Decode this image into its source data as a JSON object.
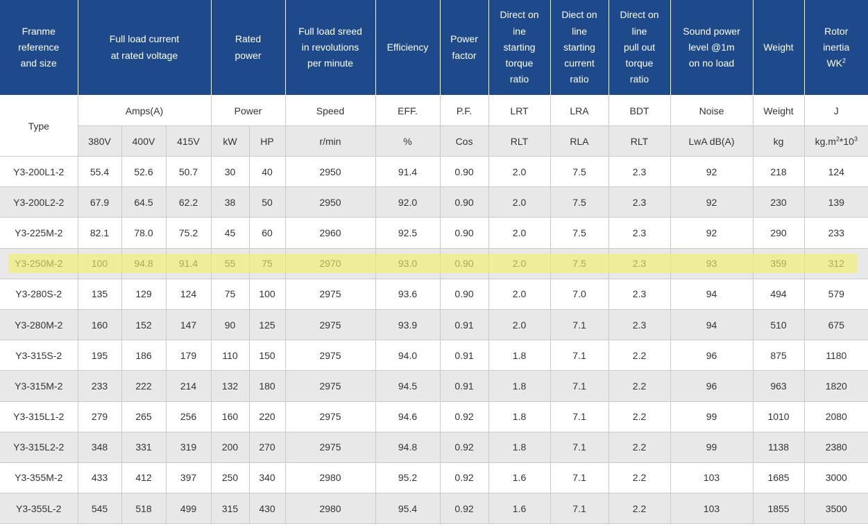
{
  "header": {
    "frame": [
      "Franme",
      "reference",
      "and size"
    ],
    "current": [
      "Full load current",
      "at rated voltage"
    ],
    "power": [
      "Rated",
      "power"
    ],
    "speed": [
      "Full load sreed",
      "in revolutions",
      "per minute"
    ],
    "efficiency": [
      "Efficiency"
    ],
    "pf": [
      "Power",
      "factor"
    ],
    "lrt": [
      "Direct on",
      "ine",
      "starting",
      "torque",
      "ratio"
    ],
    "lra": [
      "Diect on",
      "line",
      "starting",
      "current",
      "ratio"
    ],
    "bdt": [
      "Direct on",
      "line",
      "pull out",
      "torque",
      "ratio"
    ],
    "noise": [
      "Sound power",
      "level @1m",
      "on no load"
    ],
    "weight": [
      "Weight"
    ],
    "inertia": [
      "Rotor",
      "inertia",
      "WK",
      "2"
    ]
  },
  "units1": {
    "type": "Type",
    "amps": "Amps(A)",
    "power": "Power",
    "speed": "Speed",
    "eff": "EFF.",
    "pf": "P.F.",
    "lrt": "LRT",
    "lra": "LRA",
    "bdt": "BDT",
    "noise": "Noise",
    "weight": "Weight",
    "j": "J"
  },
  "units2": {
    "v380": "380V",
    "v400": "400V",
    "v415": "415V",
    "kw": "kW",
    "hp": "HP",
    "rpm": "r/min",
    "pct": "%",
    "cos": "Cos",
    "rlt1": "RLT",
    "rla": "RLA",
    "rlt2": "RLT",
    "lwa": "LwA dB(A)",
    "kg": "kg",
    "inertia_a": "kg.m",
    "inertia_b": "2",
    "inertia_c": "*10",
    "inertia_d": "3"
  },
  "highlight": {
    "row_index": 3,
    "color": "#f0f06a"
  },
  "rows": [
    [
      "Y3-200L1-2",
      "55.4",
      "52.6",
      "50.7",
      "30",
      "40",
      "2950",
      "91.4",
      "0.90",
      "2.0",
      "7.5",
      "2.3",
      "92",
      "218",
      "124"
    ],
    [
      "Y3-200L2-2",
      "67.9",
      "64.5",
      "62.2",
      "38",
      "50",
      "2950",
      "92.0",
      "0.90",
      "2.0",
      "7.5",
      "2.3",
      "92",
      "230",
      "139"
    ],
    [
      "Y3-225M-2",
      "82.1",
      "78.0",
      "75.2",
      "45",
      "60",
      "2960",
      "92.5",
      "0.90",
      "2.0",
      "7.5",
      "2.3",
      "92",
      "290",
      "233"
    ],
    [
      "Y3-250M-2",
      "100",
      "94.8",
      "91.4",
      "55",
      "75",
      "2970",
      "93.0",
      "0.90",
      "2.0",
      "7.5",
      "2.3",
      "93",
      "359",
      "312"
    ],
    [
      "Y3-280S-2",
      "135",
      "129",
      "124",
      "75",
      "100",
      "2975",
      "93.6",
      "0.90",
      "2.0",
      "7.0",
      "2.3",
      "94",
      "494",
      "579"
    ],
    [
      "Y3-280M-2",
      "160",
      "152",
      "147",
      "90",
      "125",
      "2975",
      "93.9",
      "0.91",
      "2.0",
      "7.1",
      "2.3",
      "94",
      "510",
      "675"
    ],
    [
      "Y3-315S-2",
      "195",
      "186",
      "179",
      "110",
      "150",
      "2975",
      "94.0",
      "0.91",
      "1.8",
      "7.1",
      "2.2",
      "96",
      "875",
      "1180"
    ],
    [
      "Y3-315M-2",
      "233",
      "222",
      "214",
      "132",
      "180",
      "2975",
      "94.5",
      "0.91",
      "1.8",
      "7.1",
      "2.2",
      "96",
      "963",
      "1820"
    ],
    [
      "Y3-315L1-2",
      "279",
      "265",
      "256",
      "160",
      "220",
      "2975",
      "94.6",
      "0.92",
      "1.8",
      "7.1",
      "2.2",
      "99",
      "1010",
      "2080"
    ],
    [
      "Y3-315L2-2",
      "348",
      "331",
      "319",
      "200",
      "270",
      "2975",
      "94.8",
      "0.92",
      "1.8",
      "7.1",
      "2.2",
      "99",
      "1138",
      "2380"
    ],
    [
      "Y3-355M-2",
      "433",
      "412",
      "397",
      "250",
      "340",
      "2980",
      "95.2",
      "0.92",
      "1.6",
      "7.1",
      "2.2",
      "103",
      "1685",
      "3000"
    ],
    [
      "Y3-355L-2",
      "545",
      "518",
      "499",
      "315",
      "430",
      "2980",
      "95.4",
      "0.92",
      "1.6",
      "7.1",
      "2.2",
      "103",
      "1855",
      "3500"
    ]
  ]
}
